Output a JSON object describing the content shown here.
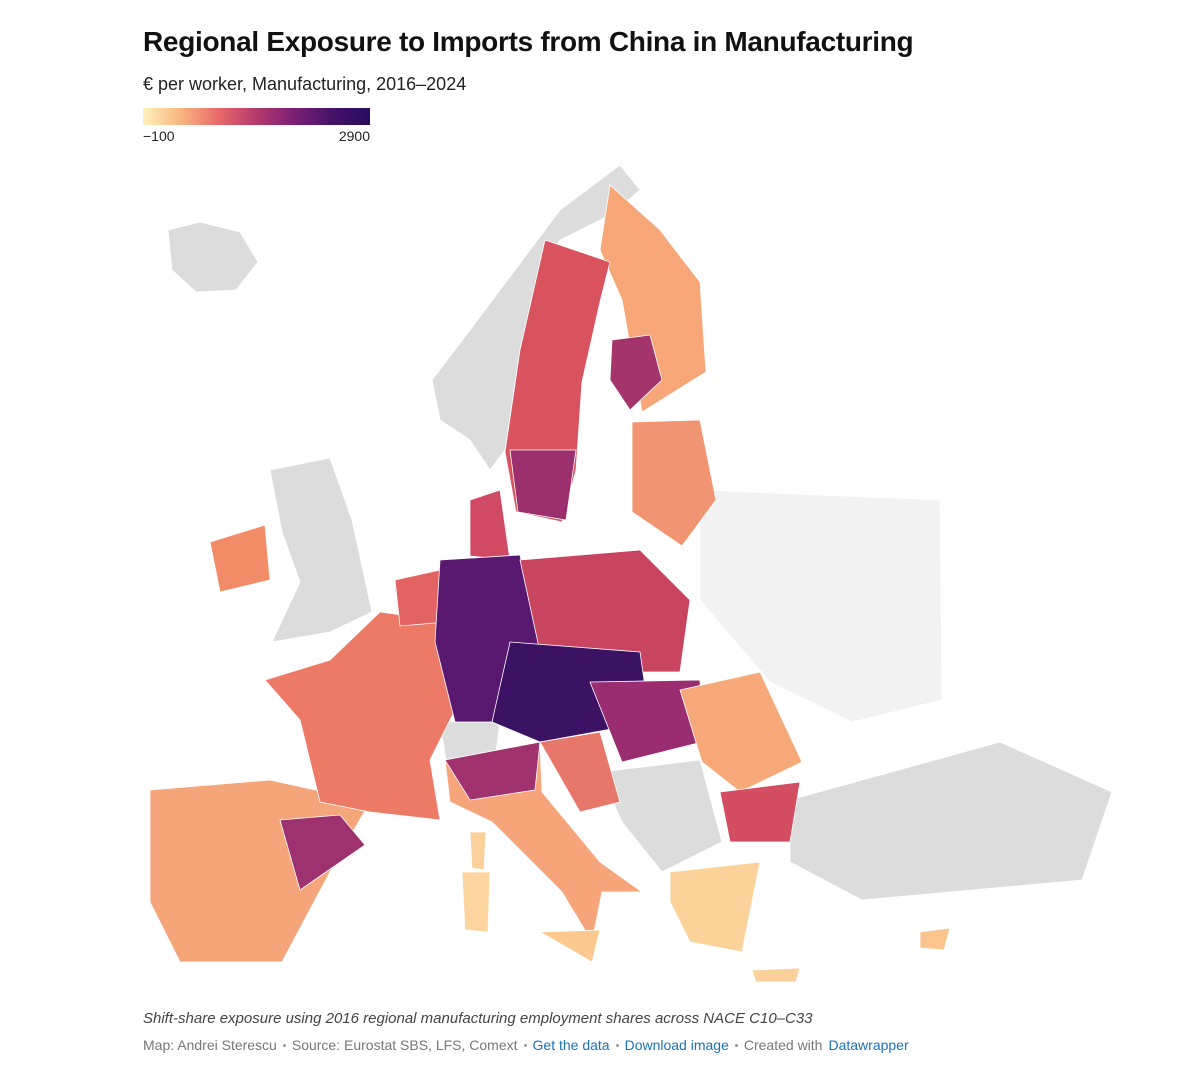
{
  "header": {
    "title": "Regional Exposure to Imports from China in Manufacturing",
    "subtitle": "€ per worker, Manufacturing, 2016–2024"
  },
  "legend": {
    "ticks": [
      {
        "value": -100,
        "label": "−100"
      },
      2900
    ],
    "colors": [
      "#fdf0bc",
      "#f9b57e",
      "#e8696a",
      "#b5396c",
      "#7b2075",
      "#45136a",
      "#2a0c5c"
    ]
  },
  "note": "Shift-share exposure using 2016 regional manufacturing employment shares across NACE C10–C33",
  "footer": {
    "byline": "Map: Andrei Sterescu",
    "source": "Source: Eurostat SBS, LFS, Comext",
    "links": [
      "Get the data",
      "Download image"
    ],
    "credit_prefix": "Created with",
    "credit_link": "Datawrapper"
  }
}
